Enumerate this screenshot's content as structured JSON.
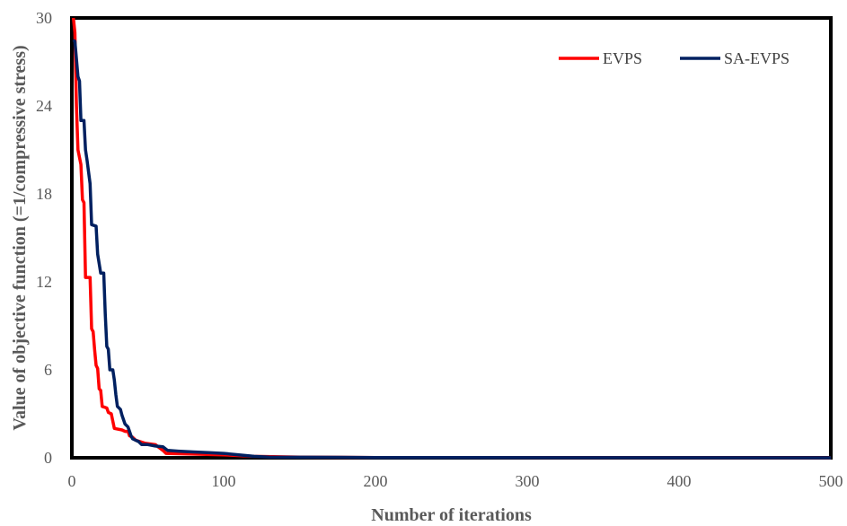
{
  "chart_data": {
    "type": "line",
    "title": "",
    "xlabel": "Number of iterations",
    "ylabel": "Value of objective function (=1/compressive stress)",
    "xlim": [
      0,
      500
    ],
    "ylim": [
      0,
      30
    ],
    "x_ticks": [
      "0",
      "100",
      "200",
      "300",
      "400",
      "500"
    ],
    "y_ticks": [
      "0",
      "6",
      "12",
      "18",
      "24",
      "30"
    ],
    "grid": false,
    "legend_position": "top-right",
    "series": [
      {
        "name": "EVPS",
        "color": "#ff0000",
        "points": [
          [
            1,
            30
          ],
          [
            2,
            29
          ],
          [
            3,
            24
          ],
          [
            4,
            21
          ],
          [
            6,
            20
          ],
          [
            7,
            17.6
          ],
          [
            8,
            17.4
          ],
          [
            9,
            12.3
          ],
          [
            12,
            12.3
          ],
          [
            13,
            8.8
          ],
          [
            14,
            8.6
          ],
          [
            15,
            7.4
          ],
          [
            16,
            6.3
          ],
          [
            17,
            6.1
          ],
          [
            18,
            4.7
          ],
          [
            19,
            4.6
          ],
          [
            20,
            3.5
          ],
          [
            23,
            3.4
          ],
          [
            24,
            3.1
          ],
          [
            26,
            3.0
          ],
          [
            28,
            2.0
          ],
          [
            33,
            1.9
          ],
          [
            35,
            1.8
          ],
          [
            37,
            1.8
          ],
          [
            38,
            1.5
          ],
          [
            40,
            1.4
          ],
          [
            42,
            1.2
          ],
          [
            45,
            1.1
          ],
          [
            48,
            1.0
          ],
          [
            55,
            0.9
          ],
          [
            60,
            0.5
          ],
          [
            62,
            0.3
          ],
          [
            80,
            0.25
          ],
          [
            100,
            0.2
          ],
          [
            120,
            0.1
          ],
          [
            150,
            0.05
          ],
          [
            200,
            0.02
          ],
          [
            500,
            0.0
          ]
        ]
      },
      {
        "name": "SA-EVPS",
        "color": "#002060",
        "points": [
          [
            1,
            28.5
          ],
          [
            2,
            28.4
          ],
          [
            4,
            26
          ],
          [
            5,
            25.7
          ],
          [
            6,
            23
          ],
          [
            8,
            23
          ],
          [
            9,
            21
          ],
          [
            10,
            20.3
          ],
          [
            12,
            18.7
          ],
          [
            13,
            15.9
          ],
          [
            16,
            15.8
          ],
          [
            17,
            13.9
          ],
          [
            19,
            12.6
          ],
          [
            21,
            12.6
          ],
          [
            22,
            9.8
          ],
          [
            23,
            7.6
          ],
          [
            24,
            7.4
          ],
          [
            25,
            6.0
          ],
          [
            27,
            6.0
          ],
          [
            28,
            5.3
          ],
          [
            29,
            4.3
          ],
          [
            30,
            3.5
          ],
          [
            32,
            3.3
          ],
          [
            33,
            2.9
          ],
          [
            34,
            2.6
          ],
          [
            35,
            2.3
          ],
          [
            37,
            2.1
          ],
          [
            39,
            1.5
          ],
          [
            40,
            1.3
          ],
          [
            42,
            1.2
          ],
          [
            44,
            1.1
          ],
          [
            46,
            0.9
          ],
          [
            50,
            0.9
          ],
          [
            55,
            0.8
          ],
          [
            60,
            0.75
          ],
          [
            63,
            0.5
          ],
          [
            70,
            0.45
          ],
          [
            80,
            0.4
          ],
          [
            90,
            0.35
          ],
          [
            100,
            0.3
          ],
          [
            110,
            0.2
          ],
          [
            120,
            0.1
          ],
          [
            130,
            0.05
          ],
          [
            200,
            0.02
          ],
          [
            500,
            0.0
          ]
        ]
      }
    ]
  }
}
